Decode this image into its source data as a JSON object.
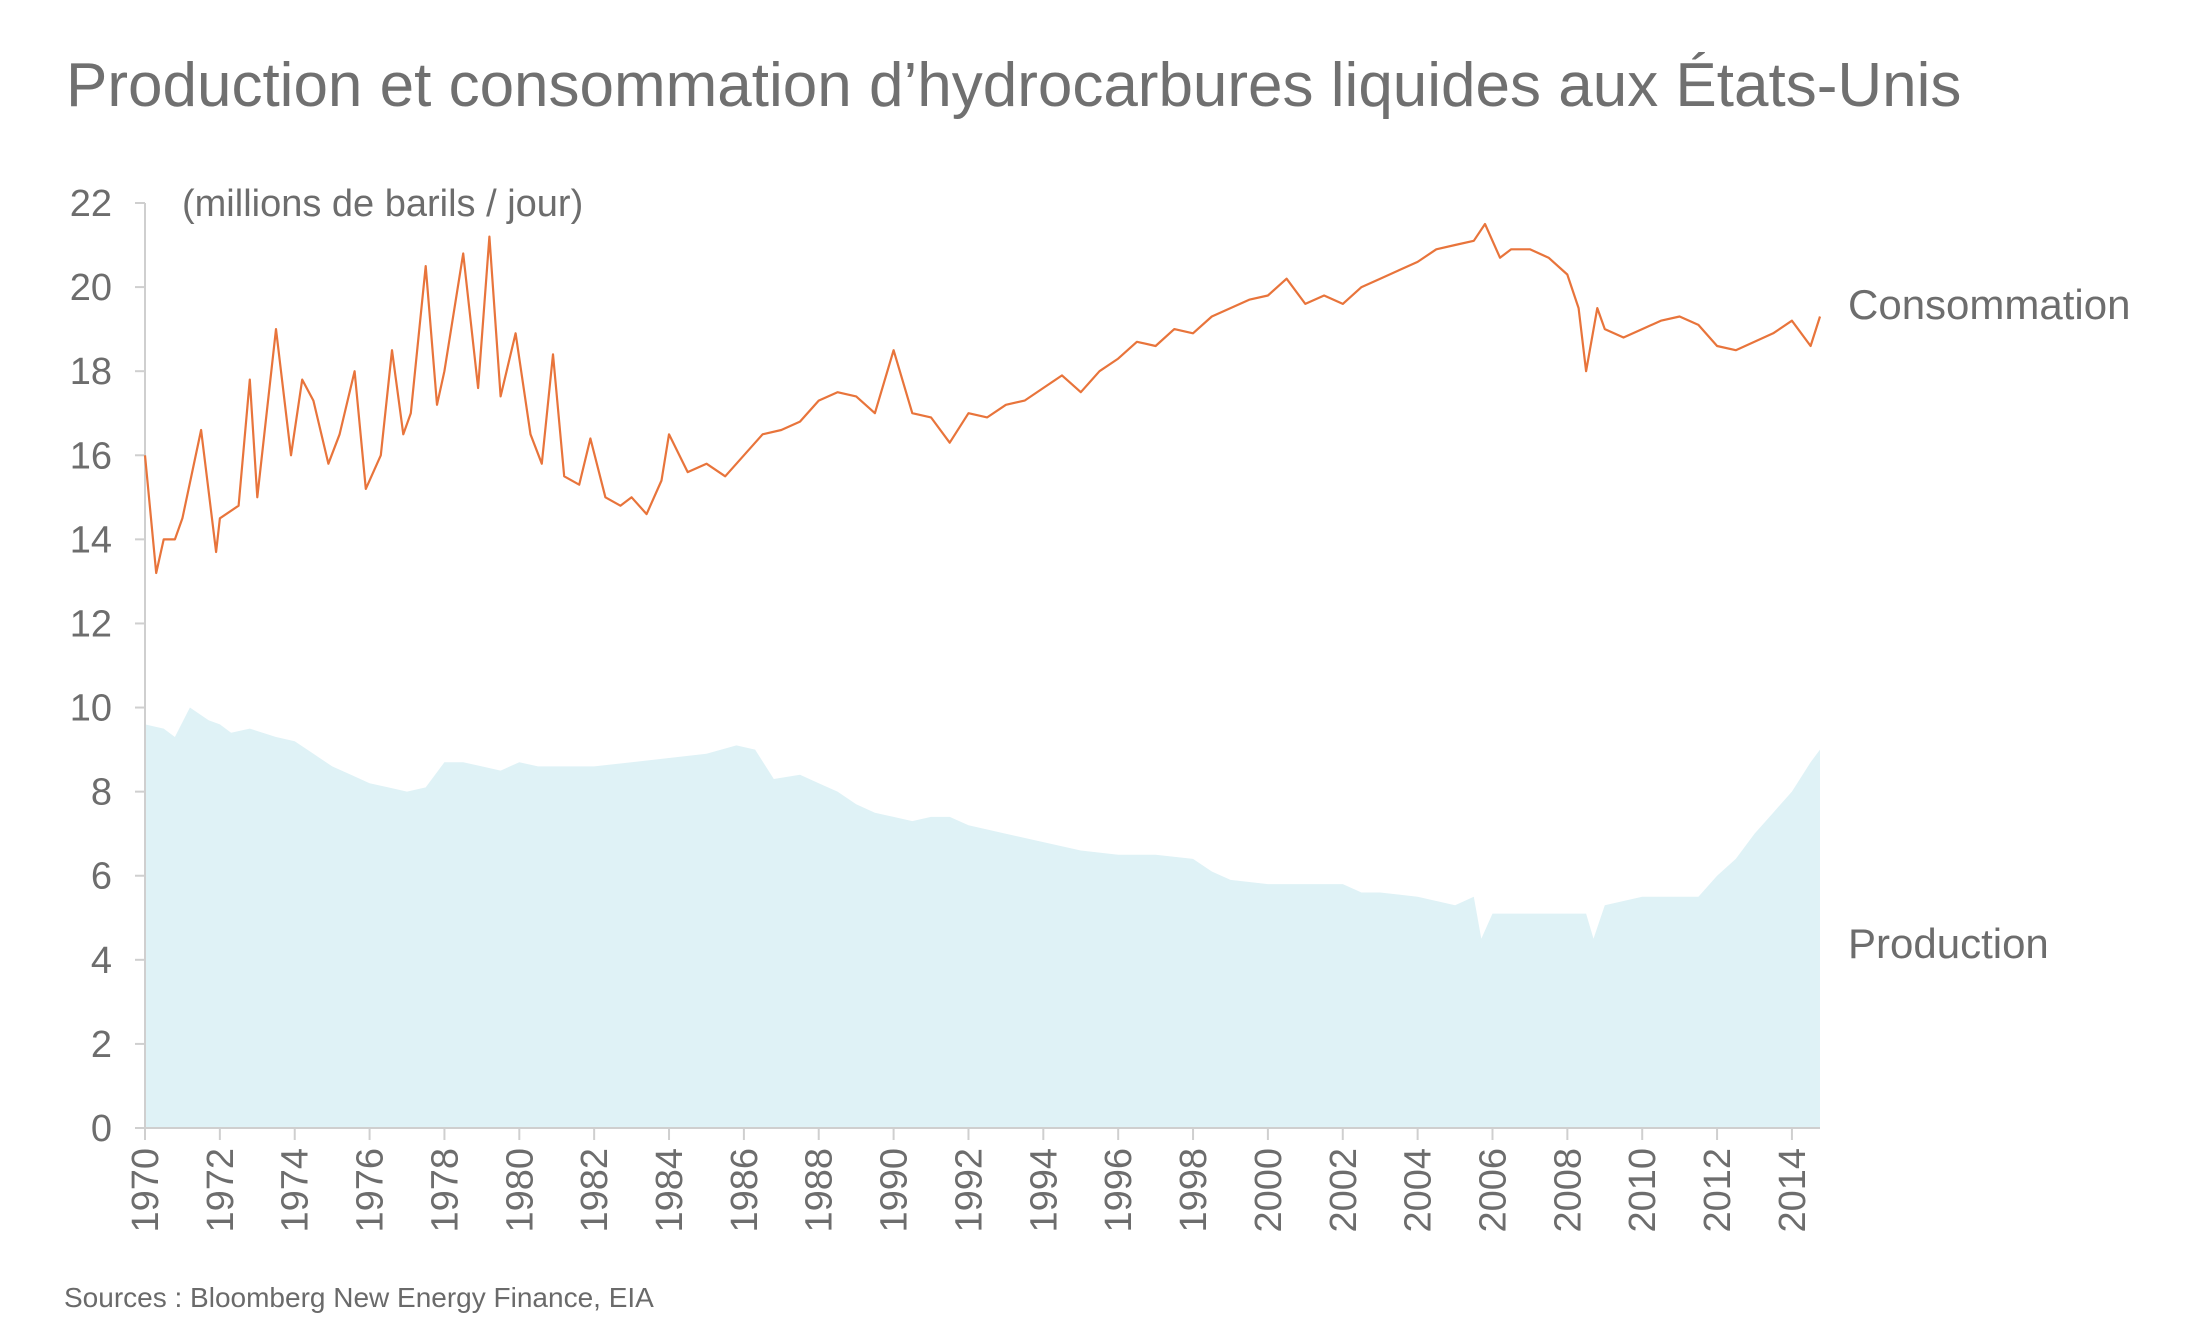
{
  "title": "Production et consommation d’hydrocarbures liquides aux États-Unis",
  "source": "Sources : Bloomberg New Energy Finance, EIA",
  "chart_data": {
    "type": "area",
    "title": "Production et consommation d’hydrocarbures liquides aux États-Unis",
    "ylabel": "(millions de barils / jour)",
    "xlabel": "",
    "ylim": [
      0,
      22
    ],
    "xlim": [
      1970,
      2014.75
    ],
    "y_ticks": [
      0,
      2,
      4,
      6,
      8,
      10,
      12,
      14,
      16,
      18,
      20,
      22
    ],
    "x_ticks": [
      1970,
      1972,
      1974,
      1976,
      1978,
      1980,
      1982,
      1984,
      1986,
      1988,
      1990,
      1992,
      1994,
      1996,
      1998,
      2000,
      2002,
      2004,
      2006,
      2008,
      2010,
      2012,
      2014
    ],
    "grid": false,
    "legend": "direct labels at right end of series",
    "series": [
      {
        "name": "Consommation",
        "style": "line",
        "color": "#e8743b",
        "x": [
          1970.0,
          1970.3,
          1970.5,
          1970.8,
          1971.0,
          1971.5,
          1971.9,
          1972.0,
          1972.5,
          1972.8,
          1973.0,
          1973.5,
          1973.9,
          1974.2,
          1974.5,
          1974.9,
          1975.2,
          1975.6,
          1975.9,
          1976.3,
          1976.6,
          1976.9,
          1977.1,
          1977.5,
          1977.8,
          1978.0,
          1978.5,
          1978.9,
          1979.2,
          1979.5,
          1979.9,
          1980.3,
          1980.6,
          1980.9,
          1981.2,
          1981.6,
          1981.9,
          1982.3,
          1982.7,
          1983.0,
          1983.4,
          1983.8,
          1984.0,
          1984.5,
          1985.0,
          1985.5,
          1986.0,
          1986.5,
          1987.0,
          1987.5,
          1988.0,
          1988.5,
          1989.0,
          1989.5,
          1990.0,
          1990.5,
          1991.0,
          1991.5,
          1992.0,
          1992.5,
          1993.0,
          1993.5,
          1994.0,
          1994.5,
          1995.0,
          1995.5,
          1996.0,
          1996.5,
          1997.0,
          1997.5,
          1998.0,
          1998.5,
          1999.0,
          1999.5,
          2000.0,
          2000.5,
          2001.0,
          2001.5,
          2002.0,
          2002.5,
          2003.0,
          2003.5,
          2004.0,
          2004.5,
          2005.0,
          2005.5,
          2005.8,
          2006.2,
          2006.5,
          2007.0,
          2007.5,
          2008.0,
          2008.3,
          2008.5,
          2008.8,
          2009.0,
          2009.5,
          2010.0,
          2010.5,
          2011.0,
          2011.5,
          2012.0,
          2012.5,
          2013.0,
          2013.5,
          2014.0,
          2014.5,
          2014.75
        ],
        "y": [
          16.0,
          13.2,
          14.0,
          14.0,
          14.5,
          16.6,
          13.7,
          14.5,
          14.8,
          17.8,
          15.0,
          19.0,
          16.0,
          17.8,
          17.3,
          15.8,
          16.5,
          18.0,
          15.2,
          16.0,
          18.5,
          16.5,
          17.0,
          20.5,
          17.2,
          18.0,
          20.8,
          17.6,
          21.2,
          17.4,
          18.9,
          16.5,
          15.8,
          18.4,
          15.5,
          15.3,
          16.4,
          15.0,
          14.8,
          15.0,
          14.6,
          15.4,
          16.5,
          15.6,
          15.8,
          15.5,
          16.0,
          16.5,
          16.6,
          16.8,
          17.3,
          17.5,
          17.4,
          17.0,
          18.5,
          17.0,
          16.9,
          16.3,
          17.0,
          16.9,
          17.2,
          17.3,
          17.6,
          17.9,
          17.5,
          18.0,
          18.3,
          18.7,
          18.6,
          19.0,
          18.9,
          19.3,
          19.5,
          19.7,
          19.8,
          20.2,
          19.6,
          19.8,
          19.6,
          20.0,
          20.2,
          20.4,
          20.6,
          20.9,
          21.0,
          21.1,
          21.5,
          20.7,
          20.9,
          20.9,
          20.7,
          20.3,
          19.5,
          18.0,
          19.5,
          19.0,
          18.8,
          19.0,
          19.2,
          19.3,
          19.1,
          18.6,
          18.5,
          18.7,
          18.9,
          19.2,
          18.6,
          19.3
        ]
      },
      {
        "name": "Production",
        "style": "area",
        "color": "#dff2f6",
        "x": [
          1970.0,
          1970.5,
          1970.8,
          1971.2,
          1971.7,
          1972.0,
          1972.3,
          1972.8,
          1973.5,
          1974.0,
          1974.5,
          1975.0,
          1975.5,
          1976.0,
          1976.5,
          1977.0,
          1977.5,
          1978.0,
          1978.5,
          1979.0,
          1979.5,
          1980.0,
          1980.5,
          1981.0,
          1982.0,
          1983.0,
          1984.0,
          1985.0,
          1985.8,
          1986.3,
          1986.8,
          1987.5,
          1988.0,
          1988.5,
          1989.0,
          1989.5,
          1990.0,
          1990.5,
          1991.0,
          1991.5,
          1992.0,
          1993.0,
          1994.0,
          1995.0,
          1996.0,
          1997.0,
          1998.0,
          1998.5,
          1999.0,
          2000.0,
          2001.0,
          2002.0,
          2002.5,
          2003.0,
          2004.0,
          2005.0,
          2005.5,
          2005.7,
          2006.0,
          2007.0,
          2008.0,
          2008.5,
          2008.7,
          2009.0,
          2010.0,
          2011.0,
          2011.5,
          2012.0,
          2012.5,
          2013.0,
          2013.5,
          2014.0,
          2014.5,
          2014.75
        ],
        "y": [
          9.6,
          9.5,
          9.3,
          10.0,
          9.7,
          9.6,
          9.4,
          9.5,
          9.3,
          9.2,
          8.9,
          8.6,
          8.4,
          8.2,
          8.1,
          8.0,
          8.1,
          8.7,
          8.7,
          8.6,
          8.5,
          8.7,
          8.6,
          8.6,
          8.6,
          8.7,
          8.8,
          8.9,
          9.1,
          9.0,
          8.3,
          8.4,
          8.2,
          8.0,
          7.7,
          7.5,
          7.4,
          7.3,
          7.4,
          7.4,
          7.2,
          7.0,
          6.8,
          6.6,
          6.5,
          6.5,
          6.4,
          6.1,
          5.9,
          5.8,
          5.8,
          5.8,
          5.6,
          5.6,
          5.5,
          5.3,
          5.5,
          4.5,
          5.1,
          5.1,
          5.1,
          5.1,
          4.5,
          5.3,
          5.5,
          5.5,
          5.5,
          6.0,
          6.4,
          7.0,
          7.5,
          8.0,
          8.7,
          9.0
        ]
      }
    ]
  }
}
